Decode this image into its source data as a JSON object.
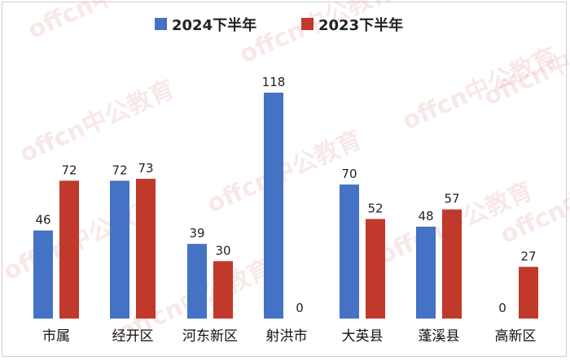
{
  "chart_data": {
    "type": "bar",
    "categories": [
      "市属",
      "经开区",
      "河东新区",
      "射洪市",
      "大英县",
      "蓬溪县",
      "高新区"
    ],
    "series": [
      {
        "name": "2024下半年",
        "values": [
          46,
          72,
          39,
          118,
          70,
          48,
          0
        ],
        "color": "#4472C4"
      },
      {
        "name": "2023下半年",
        "values": [
          72,
          73,
          30,
          0,
          52,
          57,
          27
        ],
        "color": "#C0392B"
      }
    ],
    "legend_position": "top-center",
    "grid": false,
    "ylim": [
      0,
      118
    ],
    "data_labels": true
  },
  "watermark": {
    "text": "offcn中公教育"
  }
}
